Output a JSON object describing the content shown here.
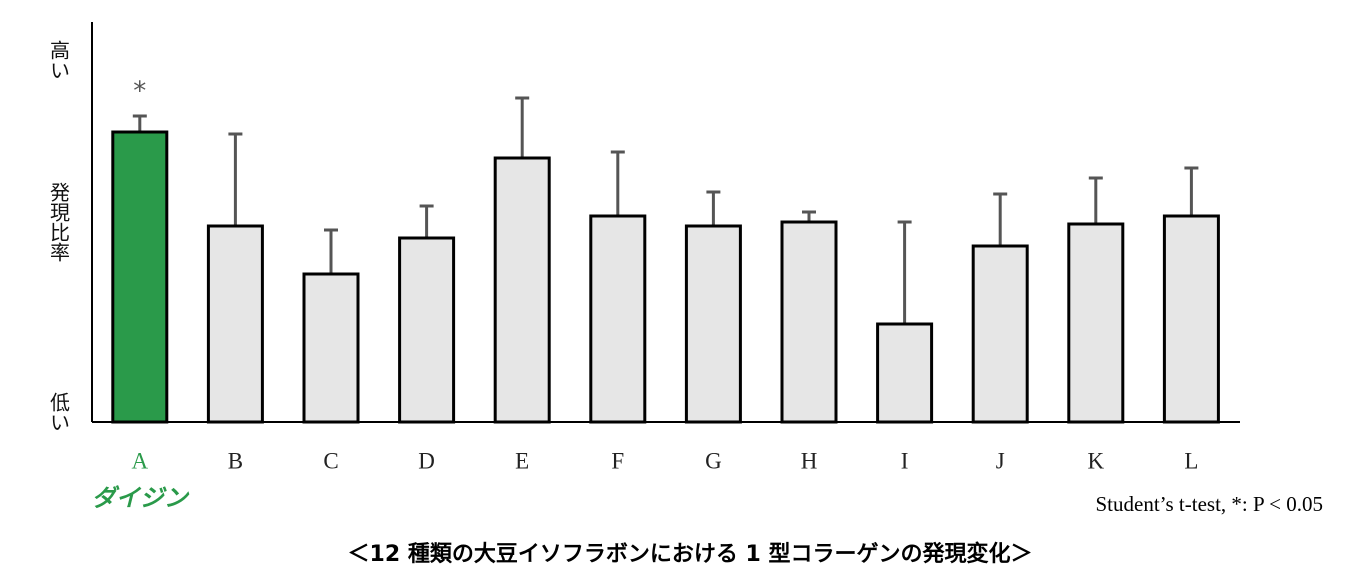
{
  "chart_data": {
    "type": "bar",
    "title": "＜12 種類の大豆イソフラボンにおける 1 型コラーゲンの発現変化＞",
    "y_label": "発現比率",
    "y_high_label": "高い",
    "y_low_label": "低い",
    "note": "Student’s t-test, *: P < 0.05",
    "categories": [
      "A",
      "B",
      "C",
      "D",
      "E",
      "F",
      "G",
      "H",
      "I",
      "J",
      "K",
      "L"
    ],
    "category_sublabels": [
      "ダイジン",
      null,
      null,
      null,
      null,
      null,
      null,
      null,
      null,
      null,
      null,
      null
    ],
    "values": [
      72.5,
      49,
      37,
      46,
      66,
      51.5,
      49,
      50,
      24.5,
      44,
      49.5,
      51.5
    ],
    "errors": [
      4,
      23,
      11,
      8,
      15,
      16,
      8.5,
      2.5,
      25.5,
      13,
      11.5,
      12
    ],
    "colors": [
      "#2a9a4a",
      "#e6e6e6",
      "#e6e6e6",
      "#e6e6e6",
      "#e6e6e6",
      "#e6e6e6",
      "#e6e6e6",
      "#e6e6e6",
      "#e6e6e6",
      "#e6e6e6",
      "#e6e6e6",
      "#e6e6e6"
    ],
    "sublabel_color": "#2a9a4a",
    "error_color": "#555555",
    "annotations": [
      {
        "text": "*",
        "category": "A"
      }
    ],
    "ylim": [
      0,
      100
    ]
  }
}
